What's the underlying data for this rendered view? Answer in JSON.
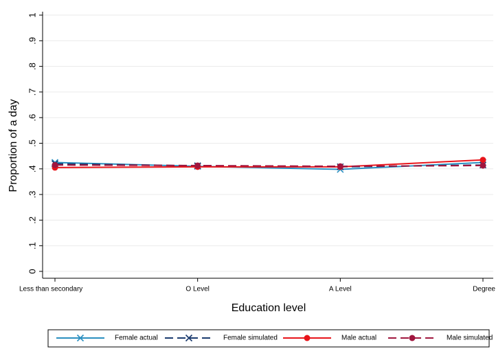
{
  "chart_data": {
    "type": "line",
    "x_label": "Education level",
    "y_label": "Proportion of a day",
    "categories": [
      "Less than secondary",
      "O Level",
      "A Level",
      "Degree"
    ],
    "series": [
      {
        "name": "Female actual",
        "color": "#2a8fc0",
        "marker": "x",
        "dash": false,
        "values": [
          0.425,
          0.41,
          0.398,
          0.425
        ]
      },
      {
        "name": "Female simulated",
        "color": "#1a3a6e",
        "marker": "x",
        "dash": true,
        "values": [
          0.42,
          0.412,
          0.408,
          0.415
        ]
      },
      {
        "name": "Male actual",
        "color": "#e8141a",
        "marker": "circle",
        "dash": false,
        "values": [
          0.405,
          0.408,
          0.408,
          0.435
        ]
      },
      {
        "name": "Male simulated",
        "color": "#a0163e",
        "marker": "circle",
        "dash": true,
        "values": [
          0.415,
          0.413,
          0.41,
          0.413
        ]
      }
    ],
    "ylim": [
      0,
      1
    ],
    "yticks": [
      0,
      {
        "value": 0.1,
        "label": ".1"
      },
      {
        "value": 0.2,
        "label": ".2"
      },
      {
        "value": 0.3,
        "label": ".3"
      },
      {
        "value": 0.4,
        "label": ".4"
      },
      {
        "value": 0.5,
        "label": ".5"
      },
      {
        "value": 0.6,
        "label": ".6"
      },
      {
        "value": 0.7,
        "label": ".7"
      },
      {
        "value": 0.8,
        "label": ".8"
      },
      {
        "value": 0.9,
        "label": ".9"
      },
      1
    ],
    "grid": true,
    "legend": "bottom"
  }
}
